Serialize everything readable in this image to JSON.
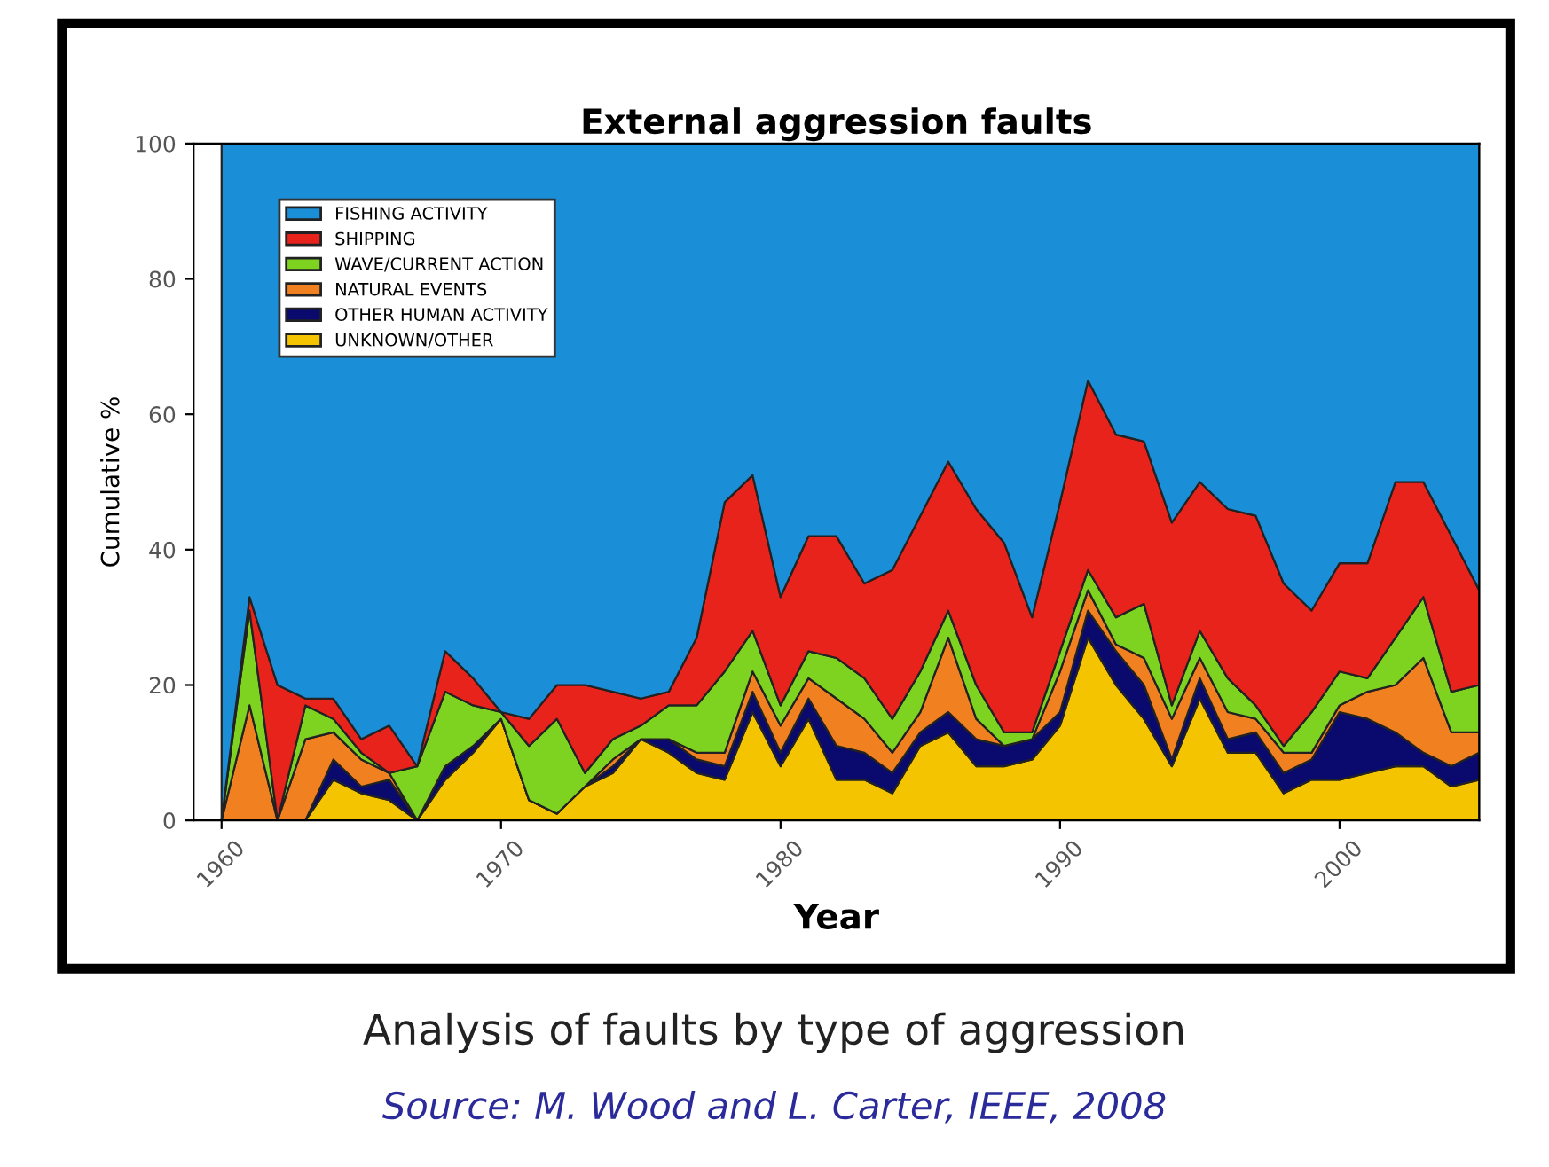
{
  "chart_data": {
    "type": "area",
    "stacked": true,
    "title": "External aggression faults",
    "xlabel": "Year",
    "ylabel": "Cumulative %",
    "annotations": [
      "Analysis of faults by type of aggression",
      "Source: M. Wood and L. Carter, IEEE, 2008"
    ],
    "x": [
      1960,
      1961,
      1962,
      1963,
      1964,
      1965,
      1966,
      1967,
      1968,
      1969,
      1970,
      1971,
      1972,
      1973,
      1974,
      1975,
      1976,
      1977,
      1978,
      1979,
      1980,
      1981,
      1982,
      1983,
      1984,
      1985,
      1986,
      1987,
      1988,
      1989,
      1990,
      1991,
      1992,
      1993,
      1994,
      1995,
      1996,
      1997,
      1998,
      1999,
      2000,
      2001,
      2002,
      2003,
      2004,
      2005
    ],
    "series": [
      {
        "name": "UNKNOWN/OTHER",
        "color": "#f5c400",
        "values": [
          0,
          0,
          0,
          0,
          6,
          4,
          3,
          0,
          6,
          10,
          15,
          3,
          1,
          5,
          7,
          12,
          10,
          7,
          6,
          16,
          8,
          15,
          6,
          6,
          4,
          11,
          13,
          8,
          8,
          9,
          14,
          27,
          20,
          15,
          8,
          18,
          10,
          10,
          4,
          6,
          6,
          7,
          8,
          8,
          5,
          6
        ]
      },
      {
        "name": "OTHER HUMAN ACTIVITY",
        "color": "#0a0a6e",
        "values": [
          0,
          0,
          0,
          0,
          3,
          1,
          3,
          0,
          2,
          1,
          0,
          0,
          0,
          0,
          1,
          0,
          2,
          2,
          2,
          3,
          2,
          3,
          5,
          4,
          3,
          2,
          3,
          4,
          3,
          3,
          2,
          4,
          5,
          5,
          1,
          3,
          2,
          3,
          3,
          3,
          10,
          8,
          5,
          2,
          3,
          4
        ]
      },
      {
        "name": "NATURAL EVENTS",
        "color": "#f08020",
        "values": [
          0,
          17,
          0,
          12,
          4,
          4,
          1,
          0,
          0,
          0,
          0,
          0,
          0,
          0,
          1,
          0,
          0,
          1,
          2,
          3,
          4,
          3,
          7,
          5,
          3,
          3,
          11,
          3,
          0,
          0,
          6,
          3,
          1,
          4,
          6,
          3,
          4,
          2,
          3,
          1,
          1,
          4,
          7,
          14,
          5,
          3
        ]
      },
      {
        "name": "WAVE/CURRENT ACTION",
        "color": "#7ed321",
        "values": [
          0,
          14,
          0,
          5,
          2,
          1,
          0,
          8,
          11,
          6,
          1,
          8,
          14,
          2,
          3,
          2,
          5,
          7,
          12,
          6,
          3,
          4,
          6,
          6,
          5,
          6,
          4,
          5,
          2,
          1,
          3,
          3,
          4,
          8,
          2,
          4,
          5,
          2,
          1,
          6,
          5,
          2,
          7,
          9,
          6,
          7
        ]
      },
      {
        "name": "SHIPPING",
        "color": "#e8231c",
        "values": [
          0,
          2,
          20,
          1,
          3,
          2,
          7,
          0,
          6,
          4,
          0,
          4,
          5,
          13,
          7,
          4,
          2,
          10,
          25,
          23,
          16,
          17,
          18,
          14,
          22,
          23,
          22,
          26,
          28,
          17,
          22,
          28,
          27,
          24,
          27,
          22,
          25,
          28,
          24,
          15,
          16,
          17,
          23,
          17,
          23,
          14
        ]
      },
      {
        "name": "FISHING ACTIVITY",
        "color": "#1a8fd8",
        "values": [
          100,
          67,
          80,
          82,
          82,
          88,
          86,
          92,
          75,
          79,
          84,
          85,
          80,
          80,
          81,
          82,
          81,
          73,
          53,
          49,
          67,
          58,
          58,
          65,
          63,
          55,
          47,
          54,
          59,
          70,
          53,
          35,
          43,
          44,
          56,
          50,
          54,
          55,
          65,
          69,
          62,
          62,
          50,
          50,
          58,
          66
        ]
      }
    ],
    "xlim": [
      1959,
      2005
    ],
    "ylim": [
      0,
      100
    ],
    "xticks": [
      1960,
      1970,
      1980,
      1990,
      2000
    ],
    "yticks": [
      0,
      20,
      40,
      60,
      80,
      100
    ],
    "legend": "top left",
    "grid": false
  }
}
